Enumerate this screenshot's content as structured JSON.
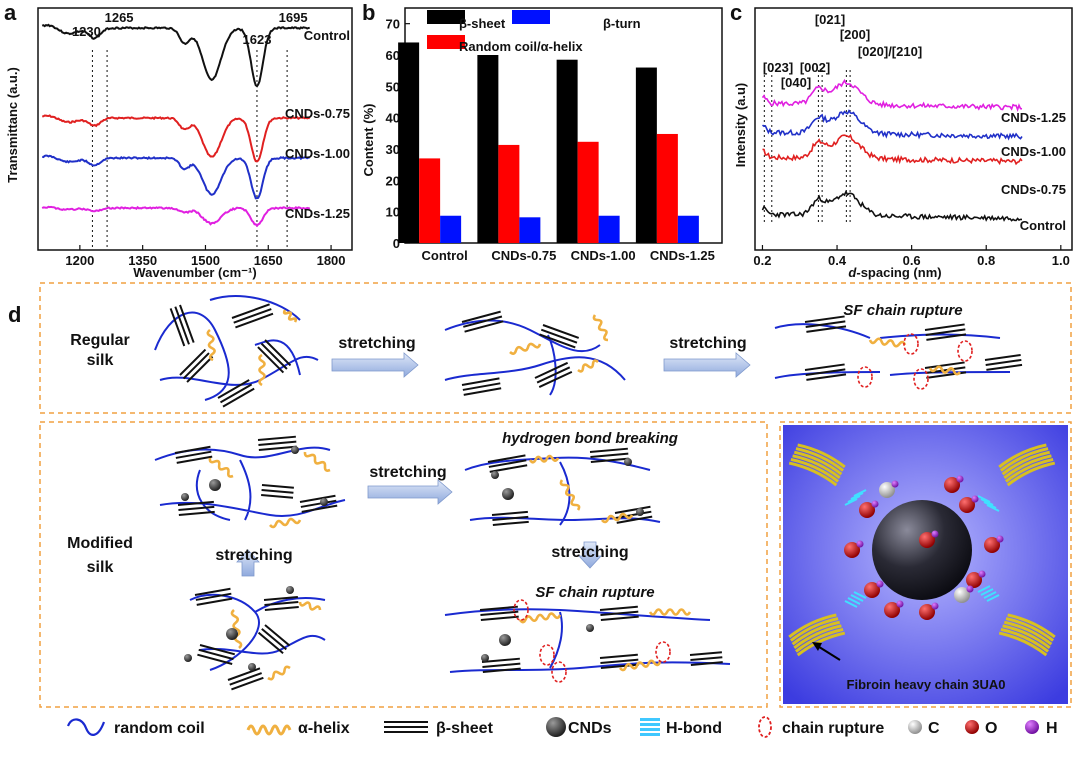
{
  "panel_labels": {
    "a": "a",
    "b": "b",
    "c": "c",
    "d": "d"
  },
  "chart_data": [
    {
      "type": "line",
      "panel": "a",
      "xlabel": "Wavenumber (cm⁻¹)",
      "ylabel": "Transmittanc (a.u.)",
      "xlim": [
        1100,
        1850
      ],
      "xticks": [
        "1200",
        "1350",
        "1500",
        "1650",
        "1800"
      ],
      "marker_lines": [
        "1230",
        "1265",
        "1623",
        "1695"
      ],
      "series": [
        {
          "name": "Control",
          "color": "#111111"
        },
        {
          "name": "CNDs-0.75",
          "color": "#e02020"
        },
        {
          "name": "CNDs-1.00",
          "color": "#2030c8"
        },
        {
          "name": "CNDs-1.25",
          "color": "#e020e0"
        }
      ]
    },
    {
      "type": "bar",
      "panel": "b",
      "ylabel": "Content (%)",
      "ylim": [
        0,
        75
      ],
      "yticks": [
        "0",
        "10",
        "20",
        "30",
        "40",
        "50",
        "60",
        "70"
      ],
      "categories": [
        "Control",
        "CNDs-0.75",
        "CNDs-1.00",
        "CNDs-1.25"
      ],
      "series": [
        {
          "name": "β-sheet",
          "color": "#000000",
          "values": [
            64.0,
            60.0,
            58.5,
            56.0
          ]
        },
        {
          "name": "Random coil/α-helix",
          "color": "#ff0000",
          "values": [
            27.0,
            31.3,
            32.3,
            34.8
          ]
        },
        {
          "name": "β-turn",
          "color": "#0010ff",
          "values": [
            8.7,
            8.2,
            8.7,
            8.7
          ]
        }
      ]
    },
    {
      "type": "line",
      "panel": "c",
      "xlabel_italic": "d",
      "xlabel_rest": "-spacing (nm)",
      "ylabel": "Intensity (a.u)",
      "xlim": [
        0.18,
        1.03
      ],
      "xticks": [
        "0.2",
        "0.4",
        "0.6",
        "0.8",
        "1.0"
      ],
      "peak_labels": [
        "[023]",
        "[040]",
        "[002]",
        "[021]",
        "[200]",
        "[020]/[210]"
      ],
      "series": [
        {
          "name": "CNDs-1.25",
          "color": "#e020e0"
        },
        {
          "name": "CNDs-1.00",
          "color": "#2030c8"
        },
        {
          "name": "CNDs-0.75",
          "color": "#e02020"
        },
        {
          "name": "Control",
          "color": "#111111"
        }
      ]
    }
  ],
  "diagram": {
    "regular_label": [
      "Regular",
      "silk"
    ],
    "modified_label": [
      "Modified",
      "silk"
    ],
    "stretching": "stretching",
    "sf_rupture": "SF chain rupture",
    "hbond_breaking": "hydrogen bond breaking",
    "fibroin": "Fibroin heavy chain 3UA0"
  },
  "legend": {
    "random_coil": "random coil",
    "alpha_helix": "α-helix",
    "beta_sheet": "β-sheet",
    "cnds": "CNDs",
    "hbond": "H-bond",
    "chain_rupture": "chain rupture",
    "c": "C",
    "o": "O",
    "h": "H"
  },
  "colors": {
    "orange_border": "#f0a040",
    "arrow": "#a9bfe8",
    "molecule_bg": "#6a6ae8"
  }
}
